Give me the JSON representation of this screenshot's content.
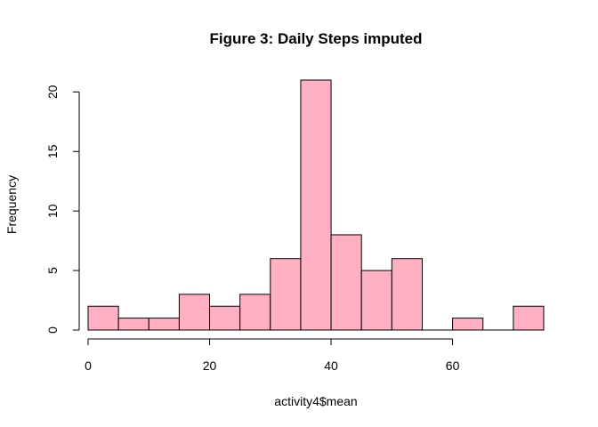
{
  "chart_data": {
    "type": "bar",
    "title": "Figure 3: Daily Steps imputed",
    "xlabel": "activity4$mean",
    "ylabel": "Frequency",
    "bin_edges": [
      0,
      5,
      10,
      15,
      20,
      25,
      30,
      35,
      40,
      45,
      50,
      55,
      60,
      65,
      70,
      75
    ],
    "values": [
      2,
      1,
      1,
      3,
      2,
      3,
      6,
      21,
      8,
      5,
      6,
      0,
      1,
      0,
      2
    ],
    "xlim": [
      0,
      75
    ],
    "ylim": [
      0,
      21
    ],
    "x_ticks": [
      0,
      20,
      40,
      60
    ],
    "y_ticks": [
      0,
      5,
      10,
      15,
      20
    ],
    "x_tick_labels": [
      "0",
      "20",
      "40",
      "60"
    ],
    "y_tick_labels": [
      "0",
      "5",
      "10",
      "15",
      "20"
    ],
    "bar_color": "#FFB0C3",
    "bar_border_color": "#000000",
    "grid": false,
    "legend": "none"
  }
}
